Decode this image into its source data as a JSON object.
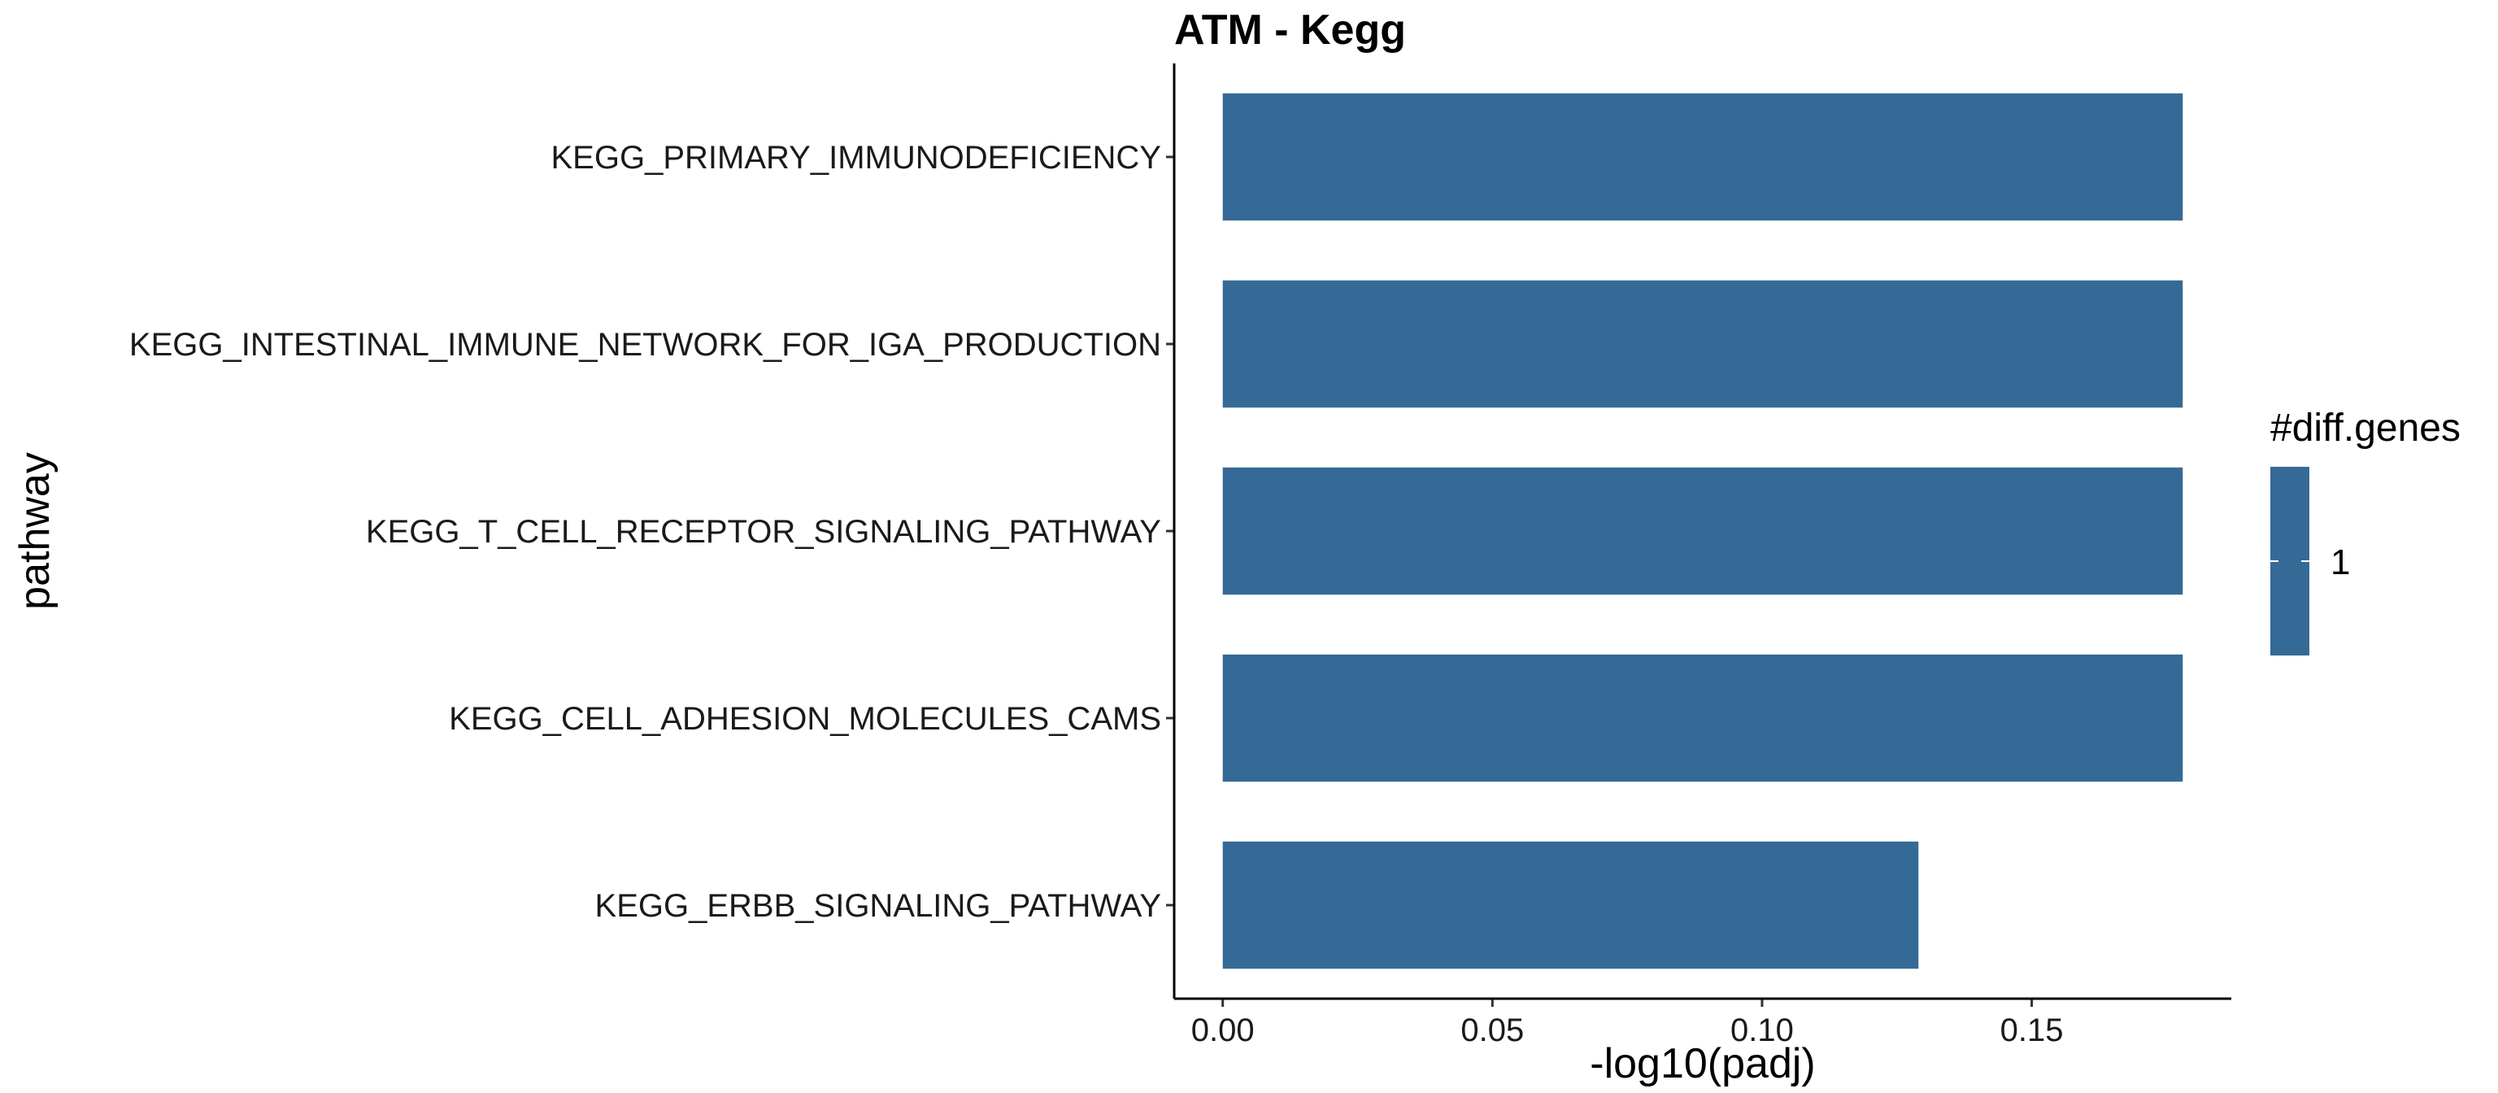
{
  "chart_data": {
    "type": "bar",
    "orientation": "horizontal",
    "title": "ATM - Kegg",
    "xlabel": "-log10(padj)",
    "ylabel": "pathway",
    "categories": [
      "KEGG_PRIMARY_IMMUNODEFICIENCY",
      "KEGG_INTESTINAL_IMMUNE_NETWORK_FOR_IGA_PRODUCTION",
      "KEGG_T_CELL_RECEPTOR_SIGNALING_PATHWAY",
      "KEGG_CELL_ADHESION_MOLECULES_CAMS",
      "KEGG_ERBB_SIGNALING_PATHWAY"
    ],
    "values": [
      0.178,
      0.178,
      0.178,
      0.178,
      0.129
    ],
    "xlim": [
      -0.009,
      0.187
    ],
    "xticks": [
      0.0,
      0.05,
      0.1,
      0.15
    ],
    "xtick_labels": [
      "0.00",
      "0.05",
      "0.10",
      "0.15"
    ],
    "bar_color": "#356A96",
    "grid": false,
    "legend": {
      "title": "#diff.genes",
      "entries": [
        "1"
      ],
      "placement": "right"
    }
  }
}
